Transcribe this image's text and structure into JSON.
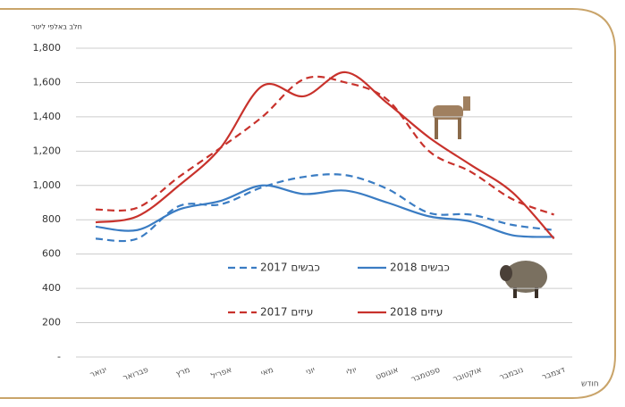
{
  "chart_data": {
    "type": "line",
    "y_label": "חלב באלפי ליטר",
    "x_label": "חודש",
    "categories": [
      "ינואר",
      "פברואר",
      "מרץ",
      "אפריל",
      "מאי",
      "יוני",
      "יולי",
      "אוגוסט",
      "ספטמבר",
      "אוקטובר",
      "נובמבר",
      "דצמבר"
    ],
    "series": [
      {
        "name": "2017 כבשים",
        "color": "#3a7cc3",
        "dashed": true,
        "values": [
          690,
          690,
          880,
          890,
          990,
          1050,
          1060,
          980,
          840,
          830,
          770,
          740
        ]
      },
      {
        "name": "2018 כבשים",
        "color": "#3a7cc3",
        "dashed": false,
        "values": [
          760,
          740,
          860,
          910,
          1000,
          950,
          970,
          900,
          820,
          790,
          710,
          700
        ]
      },
      {
        "name": "2017 עיזים",
        "color": "#c8322c",
        "dashed": true,
        "values": [
          860,
          870,
          1050,
          1220,
          1400,
          1620,
          1600,
          1500,
          1200,
          1080,
          920,
          830
        ]
      },
      {
        "name": "2018 עיזים",
        "color": "#c8322c",
        "dashed": false,
        "values": [
          785,
          820,
          1000,
          1220,
          1580,
          1520,
          1660,
          1480,
          1280,
          1120,
          960,
          690
        ]
      }
    ],
    "ylim": [
      0,
      1800
    ],
    "yticks": [
      {
        "value": 0,
        "label": "-"
      },
      200,
      400,
      600,
      800,
      {
        "value": 1000,
        "label": "1,000"
      },
      {
        "value": 1200,
        "label": "1,200"
      },
      {
        "value": 1400,
        "label": "1,400"
      },
      {
        "value": 1600,
        "label": "1,600"
      },
      {
        "value": 1800,
        "label": "1,800"
      }
    ],
    "grid": true
  }
}
